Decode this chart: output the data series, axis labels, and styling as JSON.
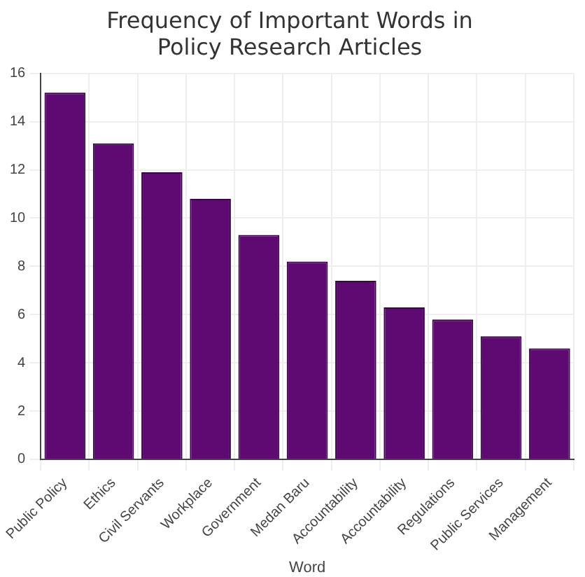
{
  "chart_data": {
    "type": "bar",
    "title": "Frequency of Important Words in Policy Research Articles",
    "xlabel": "Word",
    "categories": [
      "Public Policy",
      "Ethics",
      "Civil Servants",
      "Workplace",
      "Government",
      "Medan Baru",
      "Accountability",
      "Accountability",
      "Regulations",
      "Public Services",
      "Management"
    ],
    "values": [
      15.2,
      13.1,
      11.9,
      10.8,
      9.3,
      8.2,
      7.4,
      6.3,
      5.8,
      5.1,
      4.6
    ],
    "color": "#5e0a72",
    "ylim": [
      0,
      16
    ],
    "yticks": [
      0,
      2,
      4,
      6,
      8,
      10,
      12,
      14,
      16
    ],
    "grid": true,
    "legend": false
  }
}
